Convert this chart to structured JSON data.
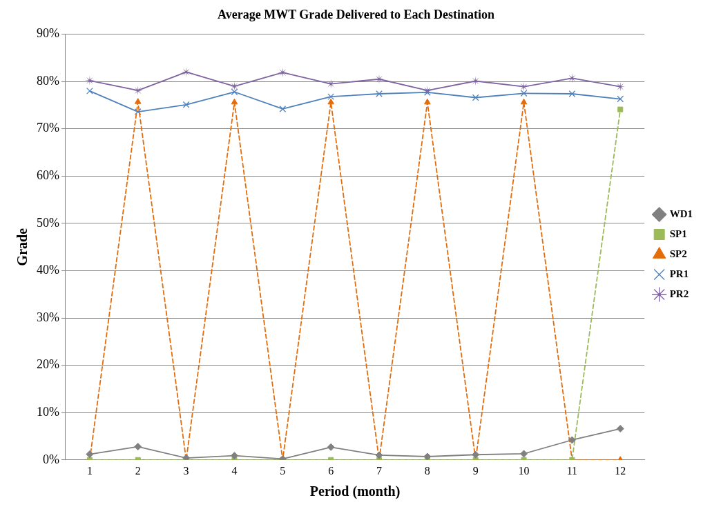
{
  "chart_data": {
    "type": "line",
    "title": "Average MWT Grade Delivered to Each Destination",
    "xlabel": "Period (month)",
    "ylabel": "Grade",
    "categories": [
      "1",
      "2",
      "3",
      "4",
      "5",
      "6",
      "7",
      "8",
      "9",
      "10",
      "11",
      "12"
    ],
    "series": [
      {
        "name": "WD1",
        "color": "#808080",
        "marker": "diamond",
        "line_style": "solid",
        "values": [
          1.2,
          2.8,
          0.4,
          0.9,
          0.2,
          2.7,
          1.0,
          0.7,
          1.1,
          1.3,
          4.2,
          6.6
        ]
      },
      {
        "name": "SP1",
        "color": "#9bbb59",
        "marker": "square",
        "line_style": "dashed",
        "values": [
          0,
          0,
          0,
          0,
          0,
          0,
          0,
          0,
          0,
          0,
          0,
          74.1
        ]
      },
      {
        "name": "SP2",
        "color": "#e46c0a",
        "marker": "triangle",
        "line_style": "dashed",
        "values": [
          0,
          75.7,
          0,
          75.6,
          0,
          75.6,
          0,
          75.6,
          0,
          75.6,
          0,
          0
        ]
      },
      {
        "name": "PR1",
        "color": "#4f81bd",
        "marker": "cross",
        "line_style": "solid",
        "values": [
          78.0,
          73.6,
          75.1,
          77.8,
          74.2,
          76.8,
          77.4,
          77.7,
          76.6,
          77.5,
          77.4,
          76.3
        ]
      },
      {
        "name": "PR2",
        "color": "#8064a2",
        "marker": "star",
        "line_style": "solid",
        "values": [
          80.2,
          78.1,
          82.0,
          79.0,
          81.9,
          79.5,
          80.5,
          78.1,
          80.1,
          78.9,
          80.7,
          78.9
        ]
      }
    ],
    "ylim": [
      0,
      90
    ],
    "yticks": [
      {
        "value": 0,
        "label": "0%"
      },
      {
        "value": 10,
        "label": "10%"
      },
      {
        "value": 20,
        "label": "20%"
      },
      {
        "value": 30,
        "label": "30%"
      },
      {
        "value": 40,
        "label": "40%"
      },
      {
        "value": 50,
        "label": "50%"
      },
      {
        "value": 60,
        "label": "60%"
      },
      {
        "value": 70,
        "label": "70%"
      },
      {
        "value": 80,
        "label": "80%"
      },
      {
        "value": 90,
        "label": "90%"
      }
    ],
    "grid": "y",
    "legend": "right"
  }
}
